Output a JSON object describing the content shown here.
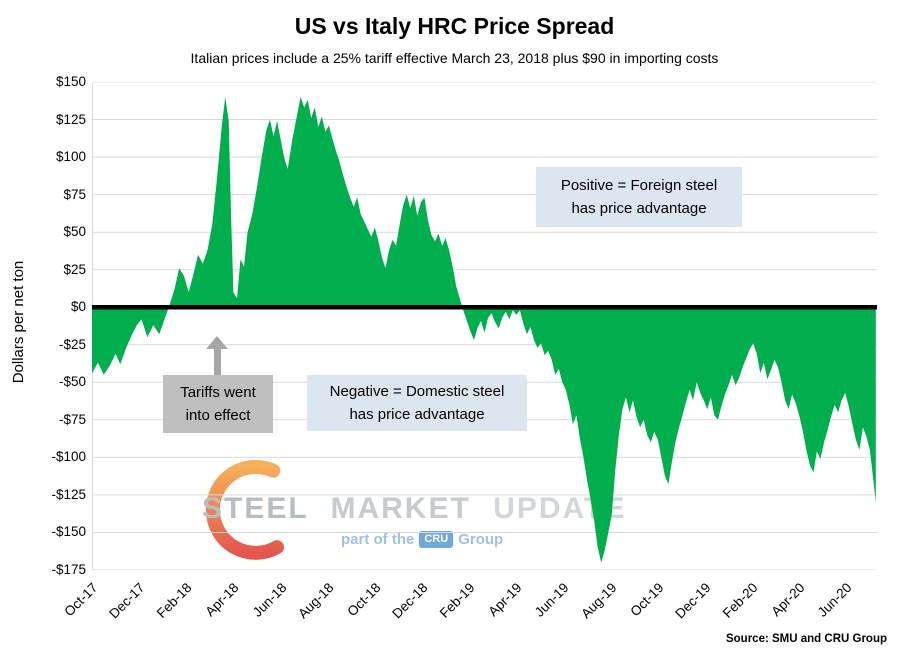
{
  "title": "US vs Italy HRC Price Spread",
  "subtitle": "Italian prices include a 25% tariff effective March 23, 2018 plus $90 in importing costs",
  "source": "Source: SMU and CRU Group",
  "annotations": {
    "positive": {
      "line1": "Positive = Foreign steel",
      "line2": "has price advantage"
    },
    "negative": {
      "line1": "Negative = Domestic steel",
      "line2": "has price advantage"
    },
    "tariff": {
      "line1": "Tariffs went",
      "line2": "into effect"
    }
  },
  "watermark": {
    "word1": "STEEL",
    "word2": "MARKET",
    "word3": "UPDATE",
    "tagline_prefix": "part of the",
    "badge": "CRU",
    "tagline_suffix": "Group"
  },
  "colors": {
    "area": "#00ae4e",
    "gridline": "#d9d9d9",
    "zero_line": "#000000",
    "callout_bg": "#dce6f1",
    "tariff_box_bg": "#bfbfbf",
    "arrow": "#a6a6a6",
    "logo_orange_top": "#f6a13c",
    "logo_orange_bottom": "#e0392e",
    "logo_blue": "#9dc3e6"
  },
  "chart_data": {
    "type": "area",
    "title": "US vs Italy HRC Price Spread",
    "xlabel": "",
    "ylabel": "Dollars per net ton",
    "ylim": [
      -175,
      150
    ],
    "xlim": [
      0,
      33.3
    ],
    "grid": true,
    "zero_baseline": true,
    "y_ticks": [
      150,
      125,
      100,
      75,
      50,
      25,
      0,
      -25,
      -50,
      -75,
      -100,
      -125,
      -150,
      -175
    ],
    "y_tick_labels": [
      "$150",
      "$125",
      "$100",
      "$75",
      "$50",
      "$25",
      "$0",
      "-$25",
      "-$50",
      "-$75",
      "-$100",
      "-$125",
      "-$150",
      "-$175"
    ],
    "x_ticks": [
      {
        "label": "Oct-17",
        "x": 0
      },
      {
        "label": "Dec-17",
        "x": 2
      },
      {
        "label": "Feb-18",
        "x": 4
      },
      {
        "label": "Apr-18",
        "x": 6
      },
      {
        "label": "Jun-18",
        "x": 8
      },
      {
        "label": "Aug-18",
        "x": 10
      },
      {
        "label": "Oct-18",
        "x": 12
      },
      {
        "label": "Dec-18",
        "x": 14
      },
      {
        "label": "Feb-19",
        "x": 16
      },
      {
        "label": "Apr-19",
        "x": 18
      },
      {
        "label": "Jun-19",
        "x": 20
      },
      {
        "label": "Aug-19",
        "x": 22
      },
      {
        "label": "Oct-19",
        "x": 24
      },
      {
        "label": "Dec-19",
        "x": 26
      },
      {
        "label": "Feb-20",
        "x": 28
      },
      {
        "label": "Apr-20",
        "x": 30
      },
      {
        "label": "Jun-20",
        "x": 32
      }
    ],
    "x_unit": "months since Oct-2017 (weekly spread values, $/net ton)",
    "points": [
      [
        0,
        -44
      ],
      [
        0.25,
        -37
      ],
      [
        0.5,
        -45
      ],
      [
        0.75,
        -39
      ],
      [
        1,
        -31
      ],
      [
        1.2,
        -38
      ],
      [
        1.45,
        -27
      ],
      [
        1.7,
        -18
      ],
      [
        1.9,
        -12
      ],
      [
        2.1,
        -8
      ],
      [
        2.35,
        -20
      ],
      [
        2.6,
        -12
      ],
      [
        2.85,
        -18
      ],
      [
        3.1,
        -7
      ],
      [
        3.3,
        2
      ],
      [
        3.5,
        12
      ],
      [
        3.7,
        26
      ],
      [
        3.9,
        21
      ],
      [
        4.1,
        10
      ],
      [
        4.3,
        22
      ],
      [
        4.5,
        35
      ],
      [
        4.7,
        29
      ],
      [
        4.9,
        38
      ],
      [
        5.1,
        55
      ],
      [
        5.3,
        85
      ],
      [
        5.5,
        120
      ],
      [
        5.65,
        140
      ],
      [
        5.8,
        124
      ],
      [
        5.9,
        60
      ],
      [
        6,
        10
      ],
      [
        6.15,
        6
      ],
      [
        6.3,
        32
      ],
      [
        6.45,
        27
      ],
      [
        6.6,
        50
      ],
      [
        6.8,
        62
      ],
      [
        7,
        80
      ],
      [
        7.2,
        100
      ],
      [
        7.4,
        118
      ],
      [
        7.55,
        125
      ],
      [
        7.7,
        114
      ],
      [
        7.85,
        124
      ],
      [
        8,
        112
      ],
      [
        8.15,
        100
      ],
      [
        8.3,
        92
      ],
      [
        8.5,
        112
      ],
      [
        8.7,
        128
      ],
      [
        8.85,
        140
      ],
      [
        9,
        133
      ],
      [
        9.15,
        138
      ],
      [
        9.3,
        126
      ],
      [
        9.45,
        133
      ],
      [
        9.6,
        120
      ],
      [
        9.75,
        127
      ],
      [
        9.9,
        117
      ],
      [
        10.05,
        121
      ],
      [
        10.2,
        112
      ],
      [
        10.35,
        104
      ],
      [
        10.5,
        97
      ],
      [
        10.65,
        88
      ],
      [
        10.8,
        80
      ],
      [
        10.95,
        73
      ],
      [
        11.1,
        67
      ],
      [
        11.25,
        73
      ],
      [
        11.4,
        62
      ],
      [
        11.55,
        57
      ],
      [
        11.7,
        52
      ],
      [
        11.85,
        47
      ],
      [
        12,
        53
      ],
      [
        12.15,
        44
      ],
      [
        12.3,
        33
      ],
      [
        12.45,
        26
      ],
      [
        12.6,
        38
      ],
      [
        12.75,
        45
      ],
      [
        12.9,
        41
      ],
      [
        13.05,
        55
      ],
      [
        13.2,
        68
      ],
      [
        13.35,
        75
      ],
      [
        13.5,
        66
      ],
      [
        13.65,
        74
      ],
      [
        13.8,
        61
      ],
      [
        13.95,
        70
      ],
      [
        14.1,
        73
      ],
      [
        14.25,
        58
      ],
      [
        14.4,
        48
      ],
      [
        14.55,
        44
      ],
      [
        14.7,
        49
      ],
      [
        14.85,
        41
      ],
      [
        15,
        46
      ],
      [
        15.15,
        38
      ],
      [
        15.3,
        27
      ],
      [
        15.45,
        14
      ],
      [
        15.6,
        6
      ],
      [
        15.75,
        -2
      ],
      [
        15.9,
        -9
      ],
      [
        16.05,
        -16
      ],
      [
        16.2,
        -22
      ],
      [
        16.35,
        -14
      ],
      [
        16.5,
        -9
      ],
      [
        16.65,
        -17
      ],
      [
        16.8,
        -7
      ],
      [
        16.95,
        -4
      ],
      [
        17.1,
        -10
      ],
      [
        17.25,
        -14
      ],
      [
        17.4,
        -7
      ],
      [
        17.55,
        -3
      ],
      [
        17.7,
        -8
      ],
      [
        17.85,
        -2
      ],
      [
        18,
        -5
      ],
      [
        18.15,
        -2
      ],
      [
        18.3,
        -11
      ],
      [
        18.45,
        -18
      ],
      [
        18.6,
        -13
      ],
      [
        18.75,
        -22
      ],
      [
        18.9,
        -27
      ],
      [
        19.05,
        -24
      ],
      [
        19.2,
        -32
      ],
      [
        19.35,
        -29
      ],
      [
        19.5,
        -35
      ],
      [
        19.65,
        -45
      ],
      [
        19.8,
        -41
      ],
      [
        19.95,
        -50
      ],
      [
        20.1,
        -55
      ],
      [
        20.25,
        -65
      ],
      [
        20.4,
        -78
      ],
      [
        20.55,
        -72
      ],
      [
        20.7,
        -88
      ],
      [
        20.85,
        -100
      ],
      [
        21,
        -115
      ],
      [
        21.15,
        -128
      ],
      [
        21.3,
        -142
      ],
      [
        21.45,
        -160
      ],
      [
        21.6,
        -170
      ],
      [
        21.75,
        -162
      ],
      [
        21.9,
        -150
      ],
      [
        22.05,
        -138
      ],
      [
        22.2,
        -108
      ],
      [
        22.35,
        -85
      ],
      [
        22.5,
        -68
      ],
      [
        22.65,
        -60
      ],
      [
        22.8,
        -70
      ],
      [
        22.95,
        -62
      ],
      [
        23.1,
        -73
      ],
      [
        23.25,
        -80
      ],
      [
        23.4,
        -75
      ],
      [
        23.55,
        -85
      ],
      [
        23.7,
        -90
      ],
      [
        23.85,
        -83
      ],
      [
        24,
        -88
      ],
      [
        24.15,
        -100
      ],
      [
        24.3,
        -112
      ],
      [
        24.45,
        -118
      ],
      [
        24.6,
        -103
      ],
      [
        24.75,
        -90
      ],
      [
        24.9,
        -80
      ],
      [
        25.05,
        -72
      ],
      [
        25.2,
        -63
      ],
      [
        25.35,
        -55
      ],
      [
        25.5,
        -62
      ],
      [
        25.65,
        -50
      ],
      [
        25.8,
        -57
      ],
      [
        25.95,
        -62
      ],
      [
        26.1,
        -68
      ],
      [
        26.25,
        -60
      ],
      [
        26.4,
        -72
      ],
      [
        26.55,
        -75
      ],
      [
        26.7,
        -66
      ],
      [
        26.85,
        -58
      ],
      [
        27,
        -52
      ],
      [
        27.15,
        -45
      ],
      [
        27.3,
        -52
      ],
      [
        27.45,
        -47
      ],
      [
        27.6,
        -40
      ],
      [
        27.75,
        -34
      ],
      [
        27.9,
        -28
      ],
      [
        28.05,
        -24
      ],
      [
        28.2,
        -31
      ],
      [
        28.35,
        -44
      ],
      [
        28.5,
        -37
      ],
      [
        28.65,
        -48
      ],
      [
        28.8,
        -42
      ],
      [
        28.95,
        -35
      ],
      [
        29.1,
        -40
      ],
      [
        29.25,
        -50
      ],
      [
        29.4,
        -62
      ],
      [
        29.55,
        -68
      ],
      [
        29.7,
        -58
      ],
      [
        29.85,
        -64
      ],
      [
        30,
        -72
      ],
      [
        30.15,
        -82
      ],
      [
        30.3,
        -95
      ],
      [
        30.45,
        -105
      ],
      [
        30.6,
        -110
      ],
      [
        30.75,
        -96
      ],
      [
        30.9,
        -101
      ],
      [
        31.05,
        -90
      ],
      [
        31.2,
        -82
      ],
      [
        31.35,
        -73
      ],
      [
        31.5,
        -65
      ],
      [
        31.65,
        -70
      ],
      [
        31.8,
        -62
      ],
      [
        31.95,
        -57
      ],
      [
        32.1,
        -66
      ],
      [
        32.25,
        -77
      ],
      [
        32.4,
        -88
      ],
      [
        32.55,
        -95
      ],
      [
        32.7,
        -80
      ],
      [
        32.85,
        -86
      ],
      [
        33,
        -95
      ],
      [
        33.25,
        -130
      ]
    ]
  }
}
